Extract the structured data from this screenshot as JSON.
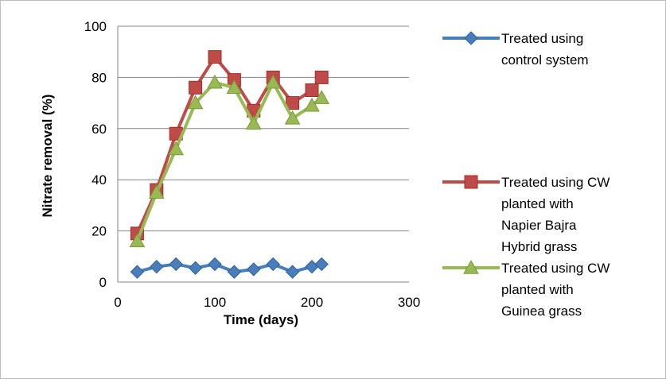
{
  "chart_data": {
    "type": "line",
    "title": "",
    "xlabel": "Time (days)",
    "ylabel": "Nitrate removal (%)",
    "xlim": [
      0,
      300
    ],
    "ylim": [
      0,
      100
    ],
    "xticks": [
      "0",
      "100",
      "200",
      "300"
    ],
    "yticks": [
      "0",
      "20",
      "40",
      "60",
      "80",
      "100"
    ],
    "grid": "horizontal",
    "legend_position": "right",
    "series": [
      {
        "name": "Treated using control system",
        "legend_lines": [
          "Treated using",
          "control system"
        ],
        "color": "#4a7ebb",
        "marker": "diamond",
        "x": [
          20,
          40,
          60,
          80,
          100,
          120,
          140,
          160,
          180,
          200,
          210
        ],
        "y": [
          4,
          6,
          7,
          5.5,
          7,
          4,
          5,
          7,
          4,
          6,
          7
        ]
      },
      {
        "name": "Treated using CW planted with Napier Bajra Hybrid grass",
        "legend_lines": [
          "Treated using CW",
          "planted with",
          "Napier Bajra",
          "Hybrid grass"
        ],
        "color": "#be4b48",
        "marker": "square",
        "x": [
          20,
          40,
          60,
          80,
          100,
          120,
          140,
          160,
          180,
          200,
          210
        ],
        "y": [
          19,
          36,
          58,
          76,
          88,
          79,
          67,
          80,
          70,
          75,
          80
        ]
      },
      {
        "name": "Treated using CW planted with Guinea grass",
        "legend_lines": [
          "Treated using CW",
          "planted with",
          "Guinea grass"
        ],
        "color": "#98b954",
        "marker": "triangle",
        "x": [
          20,
          40,
          60,
          80,
          100,
          120,
          140,
          160,
          180,
          200,
          210
        ],
        "y": [
          16,
          35,
          52,
          70,
          78,
          76,
          62,
          78,
          64,
          69,
          72
        ]
      }
    ]
  }
}
